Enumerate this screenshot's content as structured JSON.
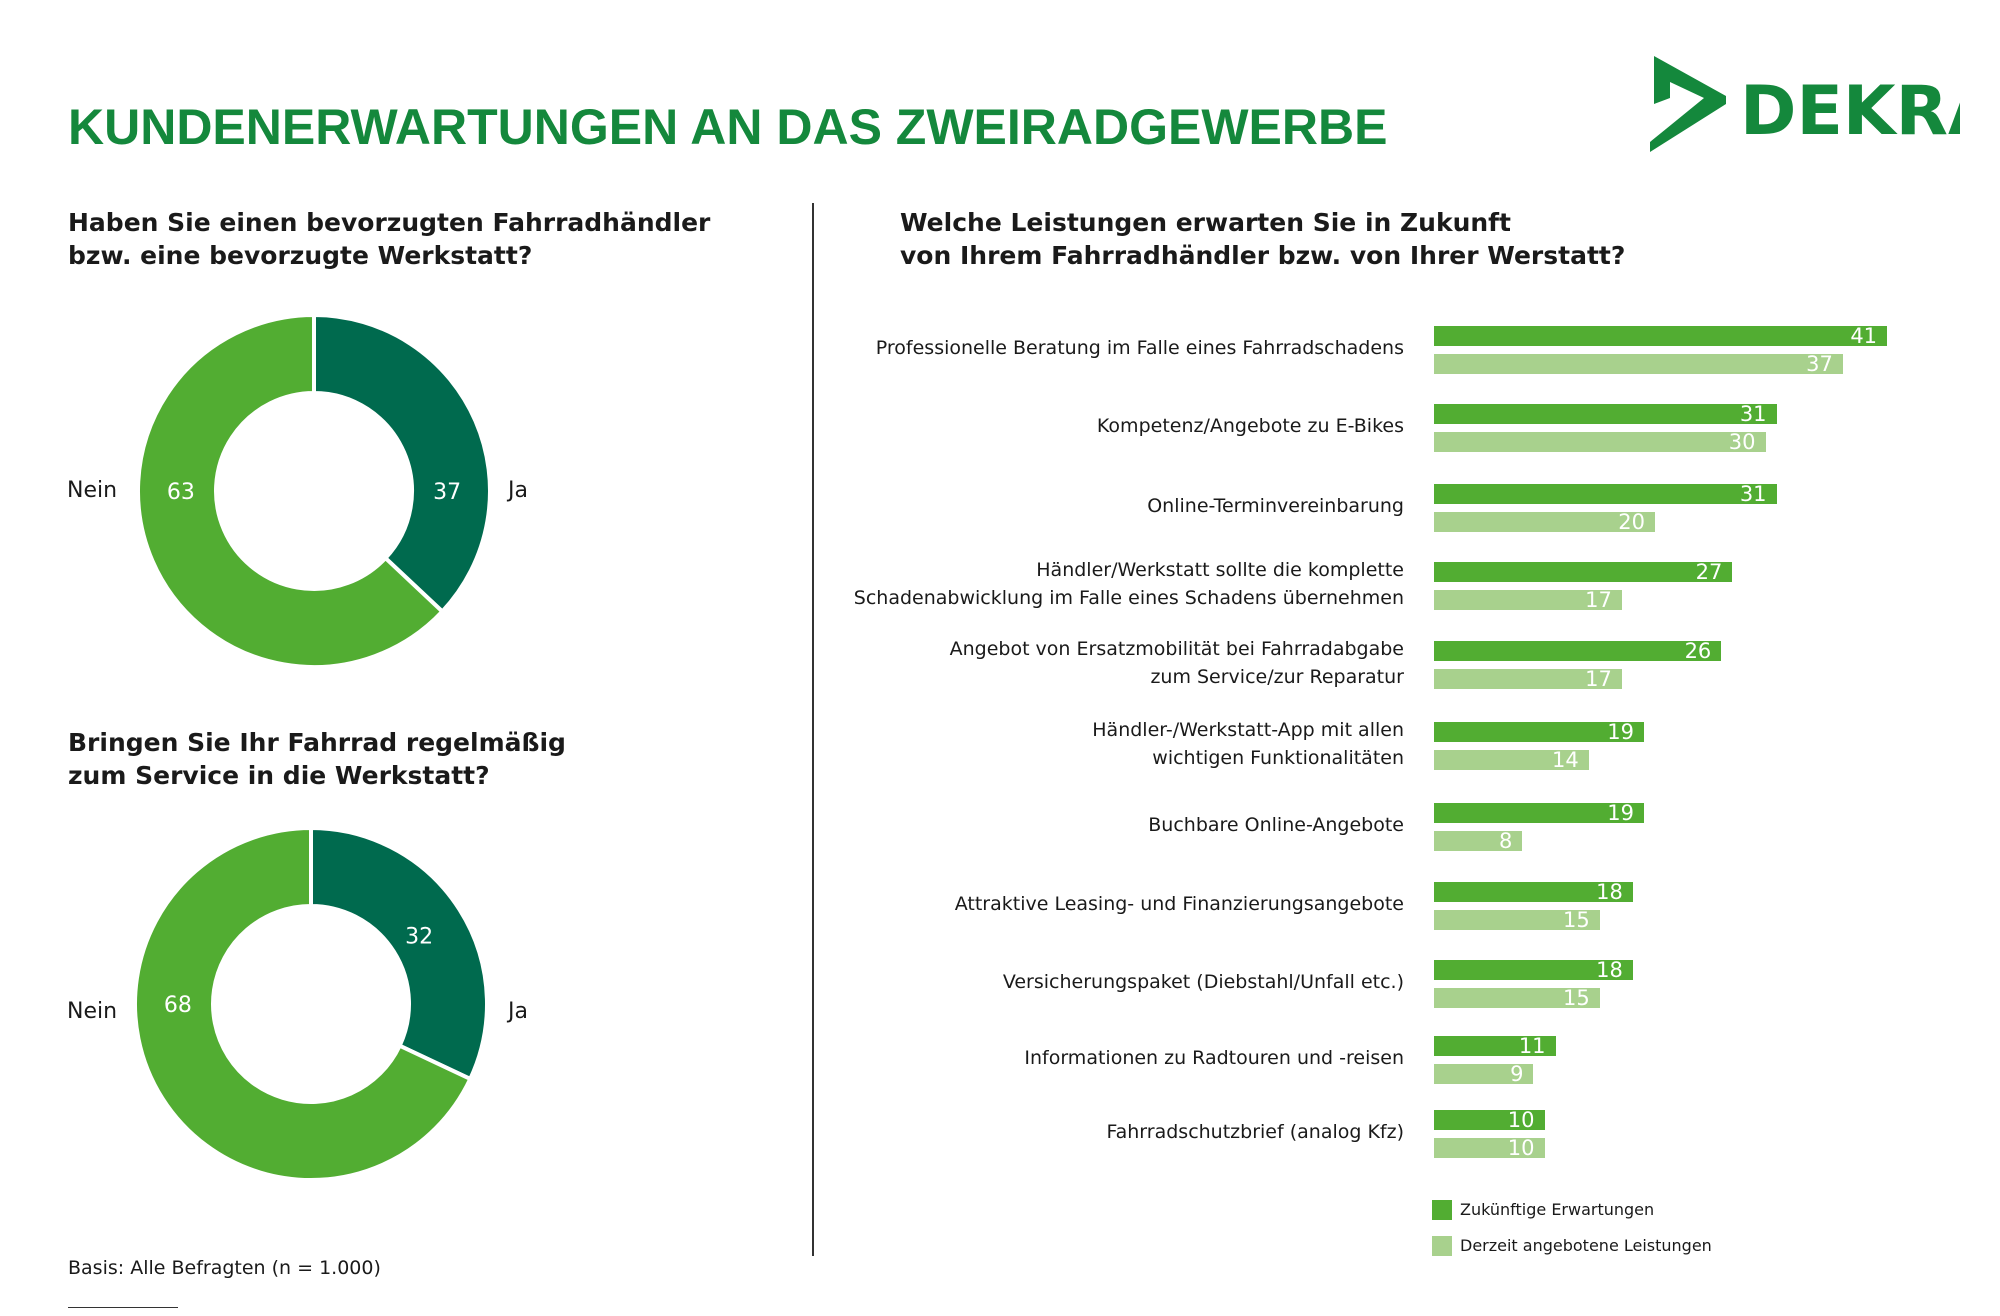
{
  "title": "KUNDENERWARTUNGEN AN DAS ZWEIRADGEWERBE",
  "logo": {
    "text": "DEKRA",
    "color": "#14883c"
  },
  "colors": {
    "dark": "#006a4e",
    "green": "#52ad32",
    "light": "#a8d18d",
    "title": "#14883c"
  },
  "chart_data": [
    {
      "type": "pie",
      "title": "Haben Sie einen bevorzugten Fahrradhändler bzw. eine bevorzugte Werkstatt?",
      "title_lines": [
        "Haben Sie einen bevorzugten Fahrradhändler",
        "bzw. eine bevorzugte Werkstatt?"
      ],
      "donut": true,
      "slices": [
        {
          "name": "Ja",
          "value": 37,
          "color": "#006a4e"
        },
        {
          "name": "Nein",
          "value": 63,
          "color": "#52ad32"
        }
      ]
    },
    {
      "type": "pie",
      "title": "Bringen Sie Ihr Fahrrad regelmäßig zum Service in die Werkstatt?",
      "title_lines": [
        "Bringen Sie Ihr Fahrrad regelmäßig",
        "zum Service in die Werkstatt?"
      ],
      "donut": true,
      "slices": [
        {
          "name": "Ja",
          "value": 32,
          "color": "#006a4e"
        },
        {
          "name": "Nein",
          "value": 68,
          "color": "#52ad32"
        }
      ]
    },
    {
      "type": "bar",
      "orientation": "horizontal",
      "title": "Welche Leistungen erwarten Sie in Zukunft von Ihrem Fahrradhändler bzw. von Ihrer Werstatt?",
      "title_lines": [
        "Welche Leistungen erwarten Sie in Zukunft",
        "von Ihrem Fahrradhändler bzw. von Ihrer Werstatt?"
      ],
      "categories": [
        [
          "Professionelle Beratung im Falle eines Fahrradschadens"
        ],
        [
          "Kompetenz/Angebote zu E-Bikes"
        ],
        [
          "Online-Terminvereinbarung"
        ],
        [
          "Händler/Werkstatt sollte die komplette",
          "Schadenabwicklung im Falle eines Schadens übernehmen"
        ],
        [
          "Angebot von Ersatzmobilität bei Fahrradabgabe",
          "zum Service/zur Reparatur"
        ],
        [
          "Händler-/Werkstatt-App mit allen",
          "wichtigen Funktionalitäten"
        ],
        [
          "Buchbare Online-Angebote"
        ],
        [
          "Attraktive Leasing- und Finanzierungsangebote"
        ],
        [
          "Versicherungspaket (Diebstahl/Unfall etc.)"
        ],
        [
          "Informationen zu Radtouren und -reisen"
        ],
        [
          "Fahrradschutzbrief (analog Kfz)"
        ]
      ],
      "series": [
        {
          "name": "Zukünftige Erwartungen",
          "color": "#52ad32",
          "values": [
            41,
            31,
            31,
            27,
            26,
            19,
            19,
            18,
            18,
            11,
            10
          ]
        },
        {
          "name": "Derzeit angebotene Leistungen",
          "color": "#a8d18d",
          "values": [
            37,
            30,
            20,
            17,
            17,
            14,
            8,
            15,
            15,
            9,
            10
          ]
        }
      ],
      "data_labels": true,
      "legend": "bottom-right"
    }
  ],
  "footnote": "Basis: Alle Befragten (n = 1.000)"
}
